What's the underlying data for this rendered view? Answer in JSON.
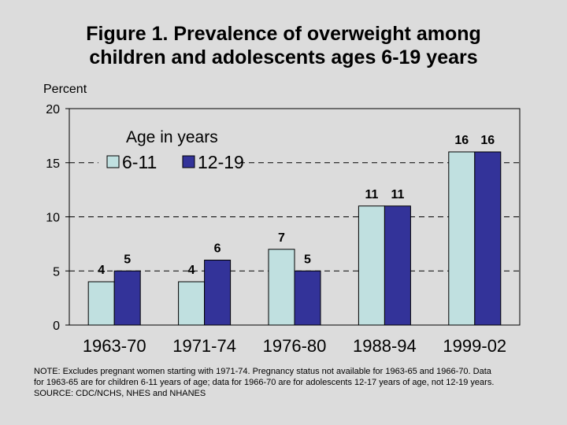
{
  "chart_data": {
    "type": "bar",
    "title": [
      "Figure 1. Prevalence of overweight among",
      "children and adolescents ages 6-19 years"
    ],
    "ylabel": "Percent",
    "ylim": [
      0,
      20
    ],
    "yticks": [
      0,
      5,
      10,
      15,
      20
    ],
    "grid": "dashed horizontal",
    "legend": {
      "title": "Age in years",
      "placement": "top-left"
    },
    "categories": [
      "1963-70",
      "1971-74",
      "1976-80",
      "1988-94",
      "1999-02"
    ],
    "series": [
      {
        "name": "6-11",
        "color": "#c0e0e0",
        "values": [
          4,
          4,
          7,
          11,
          16
        ]
      },
      {
        "name": "12-19",
        "color": "#333399",
        "values": [
          5,
          6,
          5,
          11,
          16
        ]
      }
    ]
  },
  "note": [
    "NOTE:  Excludes pregnant women starting with 1971-74.  Pregnancy status not available for 1963-65 and 1966-70.  Data",
    "for 1963-65 are for children 6-11 years of age; data for 1966-70 are for adolescents 12-17 years of age, not 12-19 years.",
    "SOURCE: CDC/NCHS, NHES and NHANES"
  ]
}
